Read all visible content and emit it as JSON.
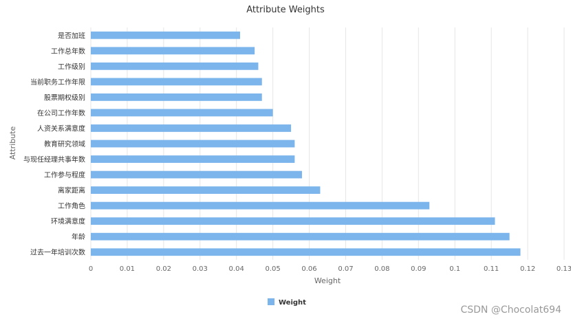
{
  "chart_data": {
    "type": "bar",
    "orientation": "horizontal",
    "title": "Attribute Weights",
    "xlabel": "Weight",
    "ylabel": "Attribute",
    "xlim": [
      0,
      0.13
    ],
    "xticks": [
      0,
      0.01,
      0.02,
      0.03,
      0.04,
      0.05,
      0.06,
      0.07,
      0.08,
      0.09,
      0.1,
      0.11,
      0.12,
      0.13
    ],
    "categories": [
      "是否加班",
      "工作总年数",
      "工作级别",
      "当前职务工作年限",
      "股票期权级别",
      "在公司工作年数",
      "人资关系满意度",
      "教育研究领域",
      "与现任经理共事年数",
      "工作参与程度",
      "离家距离",
      "工作角色",
      "环境满意度",
      "年龄",
      "过去一年培训次数"
    ],
    "series": [
      {
        "name": "Weight",
        "color": "#7cb5ec",
        "values": [
          0.041,
          0.045,
          0.046,
          0.047,
          0.047,
          0.05,
          0.055,
          0.056,
          0.056,
          0.058,
          0.063,
          0.093,
          0.111,
          0.115,
          0.118
        ]
      }
    ],
    "grid": true,
    "legend": "bottom-center"
  },
  "watermark": "CSDN @Chocolat694"
}
